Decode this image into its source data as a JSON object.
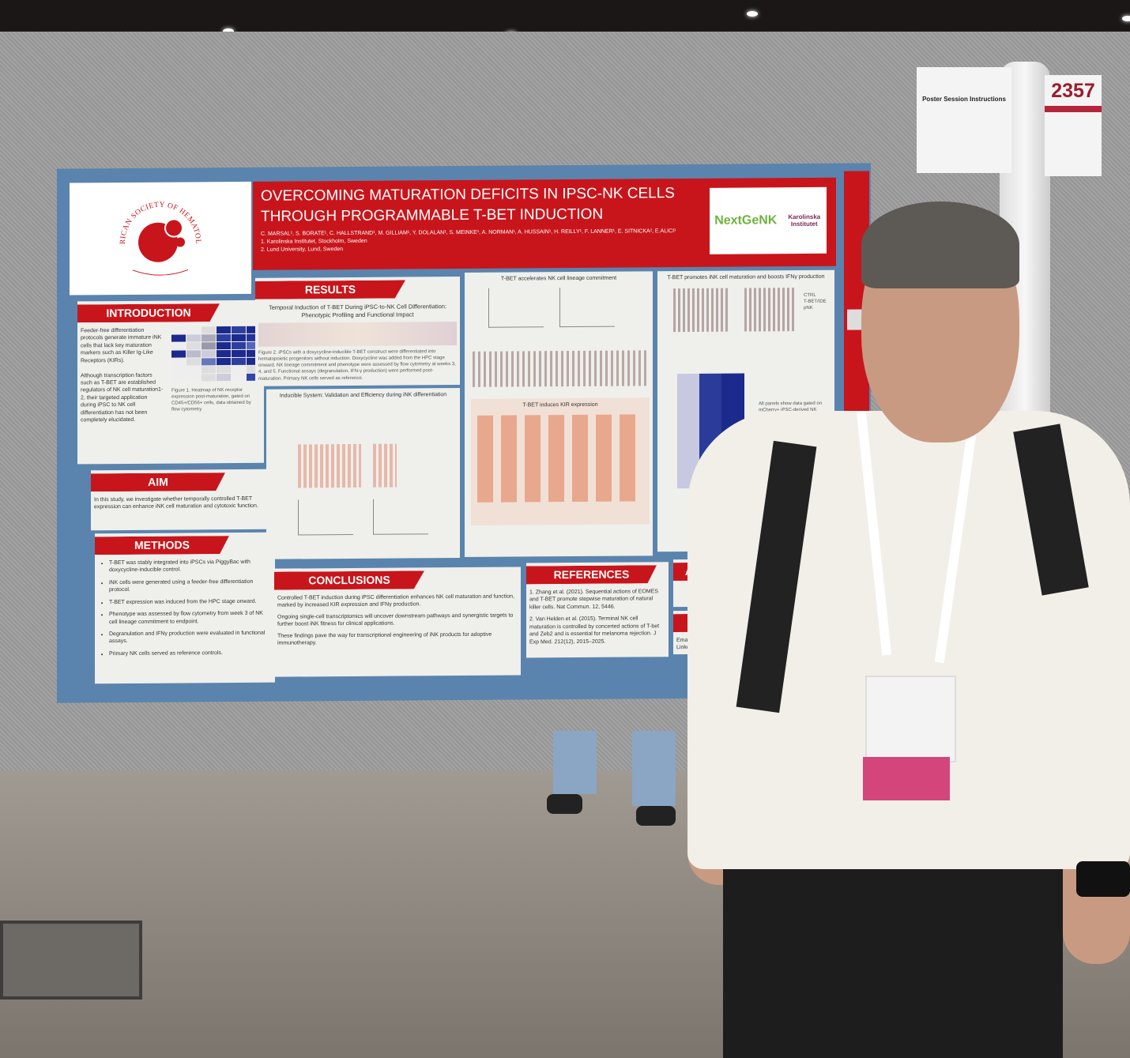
{
  "scene": {
    "board_color": "#9a9a9a",
    "poster_border_color": "#5a84ad",
    "accent_red": "#c8151b"
  },
  "poster": {
    "ash_logo_text": "AMERICAN SOCIETY OF HEMATOLOGY",
    "title": "OVERCOMING MATURATION DEFICITS IN IPSC-NK CELLS THROUGH PROGRAMMABLE T-BET INDUCTION",
    "authors": "C. MARSAL¹, S. BORATE¹, C. HALLSTRAND¹, M. GILLIAM¹, Y. DOLALAN¹, S. MEINKE¹, A. NORMAN¹, A. HUSSAIN¹, H. REILLY¹, F. LANNER¹, E. SITNICKA², E.ALICI¹",
    "affiliations": [
      "1. Karolinska Institutet, Stockholm, Sweden",
      "2. Lund University, Lund, Sweden"
    ],
    "partner_logos": {
      "nextgen": "NextGeNK",
      "karolinska": "Karolinska Institutet"
    },
    "introduction": {
      "heading": "INTRODUCTION",
      "p1": "Feeder-free differentiation protocols generate immature iNK cells that lack key maturation markers such as Killer Ig-Like Receptors (KIRs).",
      "p2": "Although transcription factors such as T-BET are established regulators of NK cell maturation1-2, their targeted application during iPSC to NK cell differentiation has not been completely elucidated.",
      "figure_caption": "Figure 1. Heatmap of NK receptor expression post-maturation, gated on CD45+/CD56+ cells, data obtained by flow cytometry"
    },
    "aim": {
      "heading": "AIM",
      "text": "In this study, we investigate whether temporally controlled T-BET expression can enhance iNK cell maturation and cytotoxic function."
    },
    "methods": {
      "heading": "METHODS",
      "items": [
        "T-BET was stably integrated into iPSCs via PiggyBac with doxycycline-inducible control.",
        "iNK cells were generated using a feeder-free differentiation protocol.",
        "T-BET expression was induced from the HPC stage onward.",
        "Phenotype was assessed by flow cytometry from week 3 of NK cell lineage commitment to endpoint.",
        "Degranulation and IFNγ production were evaluated in functional assays.",
        "Primary NK cells served as reference controls."
      ]
    },
    "results": {
      "heading": "RESULTS",
      "subtitle": "Temporal Induction of T-BET During iPSC-to-NK Cell Differentiation: Phenotypic Profiling and Functional Impact",
      "fig2_caption": "Figure 2. iPSCs with a doxycycline-inducible T-BET construct were differentiated into hematopoietic progenitors without induction. Doxycycline was added from the HPC stage onward. NK lineage commitment and phenotype were assessed by flow cytometry at weeks 3, 4, and 5. Functional assays (degranulation, IFN-γ production) were performed post-maturation. Primary NK cells served as reference.",
      "inducible_title": "Inducible System: Validation and Efficiency during iNK differentiation",
      "lineage_title": "T-BET accelerates NK cell lineage commitment",
      "kir_title": "T-BET induces KIR expression",
      "maturation_title": "T-BET promotes iNK cell maturation and boosts IFNγ production",
      "legend": [
        "CTRL",
        "T-BET/IDE",
        "pNK"
      ],
      "fig3_caption": "All panels show data gated on mCherry+ iPSC-derived NK cells, primary NK cells are used as reference (N=1)."
    },
    "conclusions": {
      "heading": "CONCLUSIONS",
      "items": [
        "Controlled T-BET induction during iPSC differentiation enhances NK cell maturation and function, marked by increased KIR expression and IFNγ production.",
        "Ongoing single-cell transcriptomics will uncover downstream pathways and synergistic targets to further boost iNK fitness for clinical applications.",
        "These findings pave the way for transcriptional engineering of iNK products for adoptive immunotherapy."
      ]
    },
    "references": {
      "heading": "REFERENCES",
      "items": [
        "1. Zhang et al. (2021). Sequential actions of EOMES and T-BET promote stepwise maturation of natural killer cells. Nat Commun. 12, 5446.",
        "2. Van Helden et al. (2015). Terminal NK cell maturation is controlled by concerted actions of T-bet and Zeb2 and is essential for melanoma rejection. J Exp Med. 212(12), 2015–2025."
      ]
    },
    "acknowledgements_heading": "ACK",
    "contact_heading": "C",
    "contact_lines": [
      "Email",
      "LinkedIn"
    ]
  },
  "signs": {
    "instructions_title": "Poster Session Instructions",
    "board_number": "2357"
  }
}
